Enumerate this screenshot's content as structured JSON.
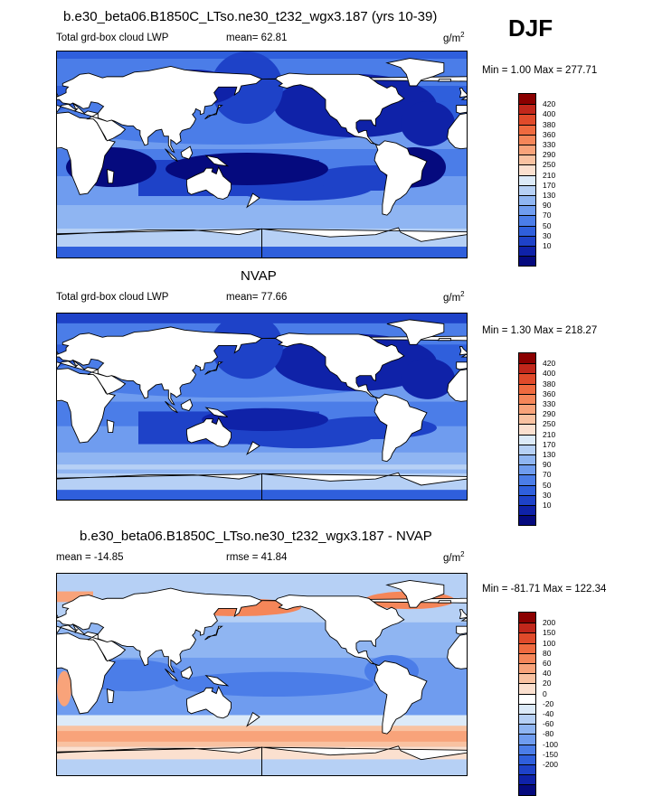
{
  "season": "DJF",
  "colors": {
    "cloud_scale": [
      "#8b0000",
      "#c1271b",
      "#e04a2a",
      "#ef6a3f",
      "#f58659",
      "#f8a37a",
      "#f9c2a1",
      "#fbe0cf",
      "#dceaf8",
      "#b6d0f5",
      "#8fb5f2",
      "#6f9cef",
      "#4b7de8",
      "#2f5fdc",
      "#1e42c8",
      "#0f22a8",
      "#050a7e"
    ],
    "diff_scale": [
      "#8b0000",
      "#c1271b",
      "#e04a2a",
      "#ef6a3f",
      "#f58659",
      "#f8a37a",
      "#f9c2a1",
      "#fbe0cf",
      "#ffffff",
      "#dceaf8",
      "#b6d0f5",
      "#8fb5f2",
      "#6f9cef",
      "#4b7de8",
      "#2f5fdc",
      "#1e42c8",
      "#0f22a8",
      "#050a7e"
    ],
    "land": "#ffffff",
    "coast": "#000000"
  },
  "panels": [
    {
      "title": "b.e30_beta06.B1850C_LTso.ne30_t232_wgx3.187 (yrs 10-39)",
      "left_label": "Total grd-box cloud LWP",
      "stat_label": "mean=  62.81",
      "units": "g/m",
      "units_sup": "2",
      "minmax": "Min =   1.00 Max = 277.71",
      "field": "model"
    },
    {
      "title": "NVAP",
      "left_label": "Total grd-box cloud LWP",
      "stat_label": "mean=  77.66",
      "units": "g/m",
      "units_sup": "2",
      "minmax": "Min =   1.30 Max = 218.27",
      "field": "obs"
    },
    {
      "title": "b.e30_beta06.B1850C_LTso.ne30_t232_wgx3.187 - NVAP",
      "left_label": "mean = -14.85",
      "stat_label": "rmse =  41.84",
      "units": "g/m",
      "units_sup": "2",
      "minmax": "Min = -81.71 Max = 122.34",
      "field": "diff"
    }
  ],
  "chart_data": [
    {
      "type": "heatmap",
      "title": "b.e30_beta06.B1850C_LTso.ne30_t232_wgx3.187 (yrs 10-39)",
      "variable": "Total grd-box cloud LWP",
      "mean": 62.81,
      "min": 1.0,
      "max": 277.71,
      "colorbar_levels": [
        "420",
        "400",
        "380",
        "360",
        "330",
        "290",
        "250",
        "210",
        "170",
        "130",
        "90",
        "70",
        "50",
        "30",
        "10"
      ]
    },
    {
      "type": "heatmap",
      "title": "NVAP",
      "variable": "Total grd-box cloud LWP",
      "mean": 77.66,
      "min": 1.3,
      "max": 218.27,
      "colorbar_levels": [
        "420",
        "400",
        "380",
        "360",
        "330",
        "290",
        "250",
        "210",
        "170",
        "130",
        "90",
        "70",
        "50",
        "30",
        "10"
      ]
    },
    {
      "type": "heatmap",
      "title": "b.e30_beta06.B1850C_LTso.ne30_t232_wgx3.187 - NVAP",
      "mean": -14.85,
      "rmse": 41.84,
      "min": -81.71,
      "max": 122.34,
      "colorbar_levels": [
        "200",
        "150",
        "100",
        "80",
        "60",
        "40",
        "20",
        "0",
        "-20",
        "-40",
        "-60",
        "-80",
        "-100",
        "-150",
        "-200"
      ]
    }
  ]
}
